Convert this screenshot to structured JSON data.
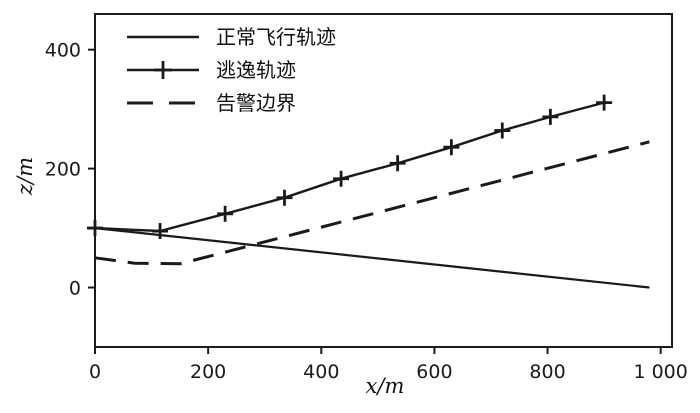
{
  "colors": {
    "line": "#1a1a1a",
    "text": "#111111",
    "background": "#ffffff"
  },
  "chart_data": {
    "type": "line",
    "title": "",
    "xlabel": "x/m",
    "ylabel": "z/m",
    "xlim": [
      0,
      1020
    ],
    "ylim": [
      -100,
      460
    ],
    "grid": false,
    "legend_position": "top-left-inside",
    "xticks": [
      {
        "v": 0,
        "label": "0"
      },
      {
        "v": 200,
        "label": "200"
      },
      {
        "v": 400,
        "label": "400"
      },
      {
        "v": 600,
        "label": "600"
      },
      {
        "v": 800,
        "label": "800"
      },
      {
        "v": 1000,
        "label": "1 000"
      }
    ],
    "yticks": [
      {
        "v": 0,
        "label": "0"
      },
      {
        "v": 200,
        "label": "200"
      },
      {
        "v": 400,
        "label": "400"
      }
    ],
    "series": [
      {
        "name": "正常飞行轨迹",
        "style": "solid",
        "marker": "none",
        "width": 2.2,
        "points": [
          [
            0,
            100
          ],
          [
            980,
            0
          ]
        ]
      },
      {
        "name": "逃逸轨迹",
        "style": "solid",
        "marker": "plus",
        "width": 2.4,
        "points": [
          [
            0,
            100
          ],
          [
            115,
            95
          ],
          [
            230,
            124
          ],
          [
            335,
            151
          ],
          [
            435,
            183
          ],
          [
            535,
            209
          ],
          [
            630,
            236
          ],
          [
            720,
            264
          ],
          [
            805,
            287
          ],
          [
            900,
            311
          ]
        ]
      },
      {
        "name": "告警边界",
        "style": "dashed",
        "marker": "none",
        "width": 3,
        "points": [
          [
            0,
            50
          ],
          [
            70,
            41
          ],
          [
            150,
            40
          ],
          [
            240,
            62
          ],
          [
            980,
            245
          ]
        ]
      }
    ]
  }
}
